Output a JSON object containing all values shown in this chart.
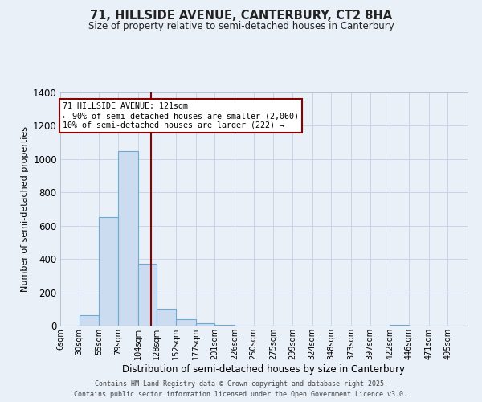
{
  "title_line1": "71, HILLSIDE AVENUE, CANTERBURY, CT2 8HA",
  "title_line2": "Size of property relative to semi-detached houses in Canterbury",
  "xlabel": "Distribution of semi-detached houses by size in Canterbury",
  "ylabel": "Number of semi-detached properties",
  "bin_edges": [
    6,
    30,
    55,
    79,
    104,
    128,
    152,
    177,
    201,
    226,
    250,
    275,
    299,
    324,
    348,
    373,
    397,
    422,
    446,
    471,
    495,
    520
  ],
  "bar_heights": [
    0,
    65,
    650,
    1050,
    370,
    100,
    40,
    15,
    5,
    0,
    0,
    0,
    0,
    0,
    0,
    0,
    0,
    5,
    0,
    0,
    0
  ],
  "bar_facecolor": "#ccdcf0",
  "bar_edgecolor": "#6aaad4",
  "grid_color": "#c8d4e8",
  "property_line_x": 121,
  "property_line_color": "#8b0000",
  "annotation_line1": "71 HILLSIDE AVENUE: 121sqm",
  "annotation_line2": "← 90% of semi-detached houses are smaller (2,060)",
  "annotation_line3": "10% of semi-detached houses are larger (222) →",
  "annotation_box_edgecolor": "#8b0000",
  "annotation_box_facecolor": "#ffffff",
  "ylim": [
    0,
    1400
  ],
  "yticks": [
    0,
    200,
    400,
    600,
    800,
    1000,
    1200,
    1400
  ],
  "tick_labels": [
    "6sqm",
    "30sqm",
    "55sqm",
    "79sqm",
    "104sqm",
    "128sqm",
    "152sqm",
    "177sqm",
    "201sqm",
    "226sqm",
    "250sqm",
    "275sqm",
    "299sqm",
    "324sqm",
    "348sqm",
    "373sqm",
    "397sqm",
    "422sqm",
    "446sqm",
    "471sqm",
    "495sqm"
  ],
  "footer_line1": "Contains HM Land Registry data © Crown copyright and database right 2025.",
  "footer_line2": "Contains public sector information licensed under the Open Government Licence v3.0.",
  "bg_color": "#eaf0f8",
  "plot_bg_color": "#eaf0f8"
}
